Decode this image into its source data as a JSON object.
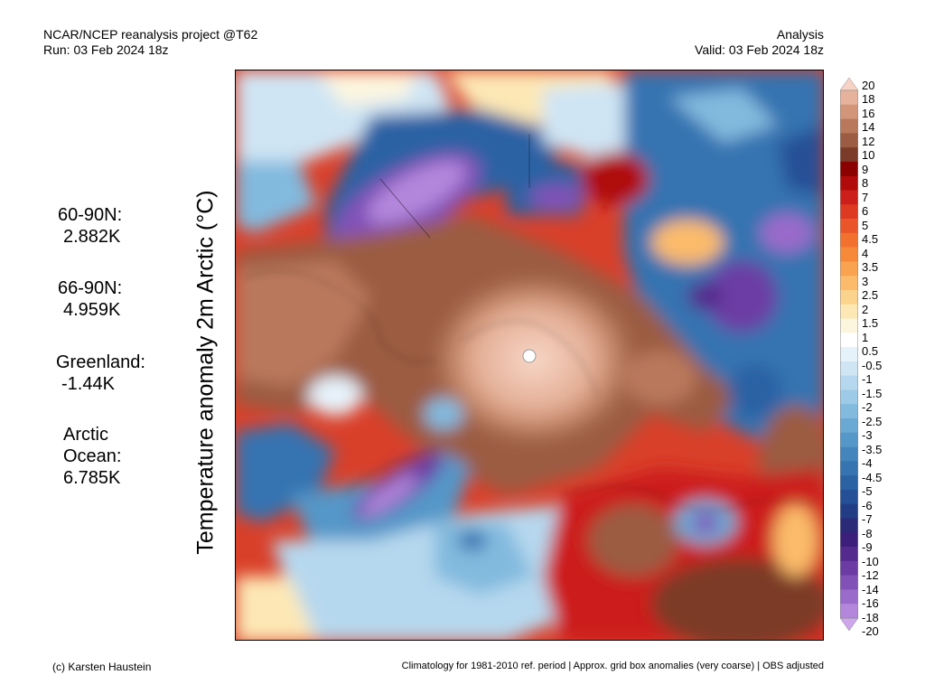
{
  "header": {
    "project": "NCAR/NCEP reanalysis project @T62",
    "run": "Run: 03 Feb 2024 18z",
    "mode": "Analysis",
    "valid": "Valid: 03 Feb 2024 18z"
  },
  "map_title": "Temperature anomaly 2m Arctic (°C)",
  "stats": [
    {
      "label": "60-90N:",
      "value": "2.882K"
    },
    {
      "label": "66-90N:",
      "value": "4.959K"
    },
    {
      "label": "Greenland:",
      "value": "-1.44K"
    },
    {
      "label": "Arctic",
      "label2": "Ocean:",
      "value": "6.785K"
    }
  ],
  "colorbar": {
    "labels": [
      "20",
      "18",
      "16",
      "14",
      "12",
      "10",
      "9",
      "8",
      "7",
      "6",
      "5",
      "4.5",
      "4",
      "3.5",
      "3",
      "2.5",
      "2",
      "1.5",
      "1",
      "0.5",
      "-0.5",
      "-1",
      "-1.5",
      "-2",
      "-2.5",
      "-3",
      "-3.5",
      "-4",
      "-4.5",
      "-5",
      "-6",
      "-7",
      "-8",
      "-9",
      "-10",
      "-12",
      "-14",
      "-16",
      "-18",
      "-20"
    ],
    "colors": [
      "#f6d3c4",
      "#e7b29b",
      "#d3957a",
      "#b9785c",
      "#9b5c43",
      "#7c3a28",
      "#8b0000",
      "#b00a0a",
      "#cc1f1a",
      "#de3a22",
      "#ea5629",
      "#f2712e",
      "#f7893a",
      "#f9a24f",
      "#fbbb6a",
      "#fcd38c",
      "#fde8b5",
      "#fdf6df",
      "#ffffff",
      "#e6f2fa",
      "#cfe5f4",
      "#b6d8ee",
      "#9ccae7",
      "#82bade",
      "#6aa9d3",
      "#5597c8",
      "#4485bd",
      "#3673b1",
      "#2b62a4",
      "#254f96",
      "#233c86",
      "#2b2a78",
      "#3c1f7a",
      "#552a8e",
      "#6c3ca4",
      "#8251b8",
      "#9a6bcb",
      "#b387dc",
      "#cda6eb"
    ]
  },
  "footer": {
    "credit": "(c) Karsten Haustein",
    "note": "Climatology for 1981-2010 ref. period | Approx. grid box anomalies (very coarse) | OBS adjusted"
  }
}
